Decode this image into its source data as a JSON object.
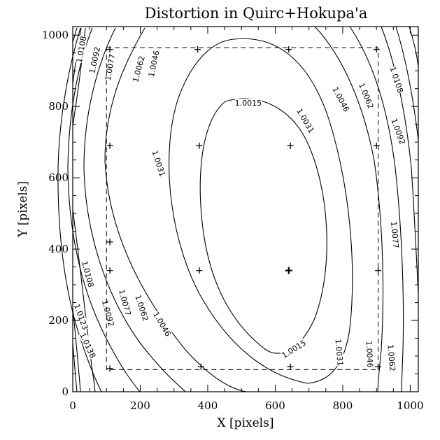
{
  "chart_data": {
    "type": "contour",
    "title": "Distortion in Quirc+Hokupa'a",
    "xlabel": "X [pixels]",
    "ylabel": "Y [pixels]",
    "xlim": [
      0,
      1024
    ],
    "ylim": [
      0,
      1024
    ],
    "xticks": [
      0,
      200,
      400,
      600,
      800,
      1000
    ],
    "yticks": [
      0,
      200,
      400,
      600,
      800,
      1000
    ],
    "xtick_labels": [
      "0",
      "200",
      "400",
      "600",
      "800",
      "1000"
    ],
    "ytick_labels": [
      "0",
      "200",
      "400",
      "600",
      "800",
      "1000"
    ],
    "field_box": {
      "x0": 100,
      "x1": 905,
      "y0": 62,
      "y1": 965
    },
    "markers": [
      {
        "x": 110,
        "y": 960
      },
      {
        "x": 370,
        "y": 960
      },
      {
        "x": 640,
        "y": 960
      },
      {
        "x": 900,
        "y": 960
      },
      {
        "x": 110,
        "y": 690
      },
      {
        "x": 375,
        "y": 690
      },
      {
        "x": 645,
        "y": 690
      },
      {
        "x": 900,
        "y": 690
      },
      {
        "x": 110,
        "y": 420
      },
      {
        "x": 110,
        "y": 340
      },
      {
        "x": 375,
        "y": 340
      },
      {
        "x": 640,
        "y": 340,
        "bold": true
      },
      {
        "x": 905,
        "y": 340
      },
      {
        "x": 110,
        "y": 65
      },
      {
        "x": 380,
        "y": 70
      },
      {
        "x": 645,
        "y": 70
      },
      {
        "x": 905,
        "y": 70
      }
    ],
    "contours": [
      {
        "level": "1.0015",
        "label_positions": [
          {
            "x": 520,
            "y": 810,
            "angle": 0
          },
          {
            "x": 655,
            "y": 120,
            "angle": -32
          }
        ]
      },
      {
        "level": "1.0031",
        "label_positions": [
          {
            "x": 255,
            "y": 640,
            "angle": 72
          },
          {
            "x": 690,
            "y": 760,
            "angle": 60
          },
          {
            "x": 790,
            "y": 110,
            "angle": 85
          }
        ]
      },
      {
        "level": "1.0046",
        "label_positions": [
          {
            "x": 240,
            "y": 920,
            "angle": -78
          },
          {
            "x": 265,
            "y": 190,
            "angle": 60
          },
          {
            "x": 795,
            "y": 820,
            "angle": 62
          },
          {
            "x": 880,
            "y": 105,
            "angle": 87
          }
        ]
      },
      {
        "level": "1.0062",
        "label_positions": [
          {
            "x": 195,
            "y": 905,
            "angle": -75
          },
          {
            "x": 205,
            "y": 235,
            "angle": 72
          },
          {
            "x": 870,
            "y": 830,
            "angle": 68
          },
          {
            "x": 945,
            "y": 95,
            "angle": 85
          }
        ]
      },
      {
        "level": "1.0077",
        "label_positions": [
          {
            "x": 110,
            "y": 910,
            "angle": -80
          },
          {
            "x": 155,
            "y": 250,
            "angle": 75
          },
          {
            "x": 955,
            "y": 440,
            "angle": 85
          }
        ]
      },
      {
        "level": "1.0092",
        "label_positions": [
          {
            "x": 65,
            "y": 930,
            "angle": -78
          },
          {
            "x": 105,
            "y": 220,
            "angle": 75
          },
          {
            "x": 965,
            "y": 730,
            "angle": 70
          }
        ]
      },
      {
        "level": "1.0108",
        "label_positions": [
          {
            "x": 25,
            "y": 960,
            "angle": -80
          },
          {
            "x": 45,
            "y": 330,
            "angle": 75
          },
          {
            "x": 960,
            "y": 875,
            "angle": 72
          }
        ]
      },
      {
        "level": "1.0123",
        "label_positions": [
          {
            "x": 25,
            "y": 210,
            "angle": 70
          }
        ]
      },
      {
        "level": "1.0138",
        "label_positions": [
          {
            "x": 45,
            "y": 130,
            "angle": 65
          }
        ]
      }
    ]
  }
}
